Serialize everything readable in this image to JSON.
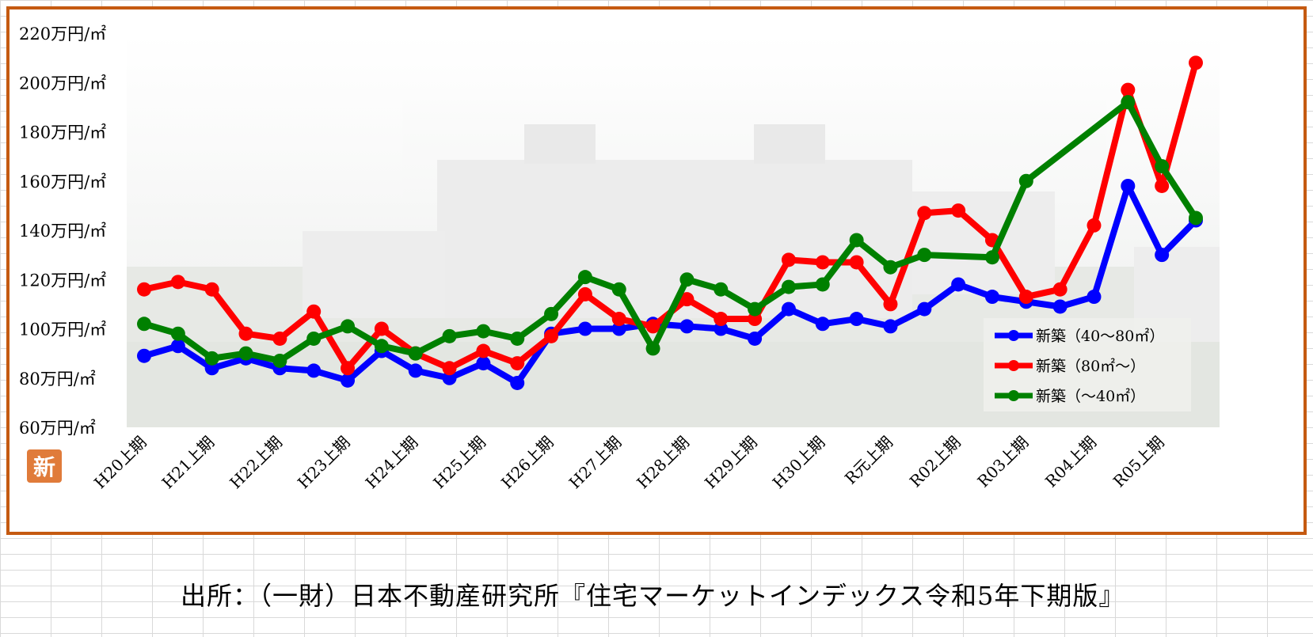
{
  "badge_text": "新",
  "source_note": "出所：（一財）日本不動産研究所『住宅マーケットインデックス令和5年下期版』",
  "colors": {
    "frame": "#c55a11",
    "badge": "#e07b3a"
  },
  "chart_data": {
    "type": "line",
    "ylim": [
      60,
      220
    ],
    "y_ticks": [
      60,
      80,
      100,
      120,
      140,
      160,
      180,
      200,
      220
    ],
    "y_tick_suffix": "万円/㎡",
    "x_labels": [
      "H20上期",
      "H21上期",
      "H22上期",
      "H23上期",
      "H24上期",
      "H25上期",
      "H26上期",
      "H27上期",
      "H28上期",
      "H29上期",
      "H30上期",
      "R元上期",
      "R02上期",
      "R03上期",
      "R04上期",
      "R05上期"
    ],
    "x_points": 32,
    "legend_position": "bottom-right",
    "series": [
      {
        "name": "新築（40～80㎡）",
        "color": "#0000ff",
        "values": [
          89,
          93,
          84,
          88,
          84,
          83,
          79,
          91,
          83,
          80,
          86,
          78,
          98,
          100,
          100,
          102,
          101,
          100,
          96,
          108,
          102,
          104,
          101,
          108,
          118,
          113,
          111,
          109,
          113,
          158,
          130,
          144
        ]
      },
      {
        "name": "新築（80㎡～）",
        "color": "#ff0000",
        "values": [
          116,
          119,
          116,
          98,
          96,
          107,
          84,
          100,
          90,
          84,
          91,
          86,
          97,
          114,
          104,
          101,
          112,
          104,
          104,
          128,
          127,
          127,
          110,
          147,
          148,
          136,
          113,
          116,
          142,
          197,
          158,
          208
        ]
      },
      {
        "name": "新築（～40㎡）",
        "color": "#008000",
        "values": [
          102,
          98,
          88,
          90,
          87,
          96,
          101,
          93,
          90,
          97,
          99,
          96,
          106,
          121,
          116,
          92,
          120,
          116,
          108,
          117,
          118,
          136,
          125,
          130,
          null,
          129,
          160,
          null,
          null,
          192,
          166,
          145
        ]
      }
    ]
  }
}
